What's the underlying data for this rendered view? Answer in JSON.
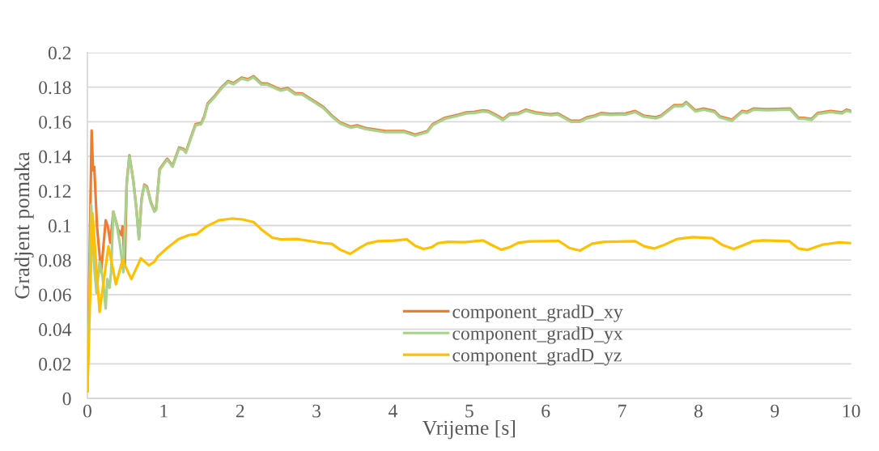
{
  "chart_data": {
    "type": "line",
    "xlabel": "Vrijeme [s]",
    "ylabel": "Gradjent pomaka",
    "xlim": [
      0,
      10
    ],
    "ylim": [
      0,
      0.2
    ],
    "xticks": [
      0,
      1,
      2,
      3,
      4,
      5,
      6,
      7,
      8,
      9,
      10
    ],
    "yticks": [
      0,
      0.02,
      0.04,
      0.06,
      0.08,
      0.1,
      0.12,
      0.14,
      0.16,
      0.18,
      0.2
    ],
    "grid": "y",
    "legend": "bottom",
    "series": [
      {
        "name": "component_gradD_xy",
        "color": "#ed7d31",
        "x": [
          0,
          0.056,
          0.074,
          0.09,
          0.127,
          0.18,
          0.24,
          0.27,
          0.3,
          0.34,
          0.4,
          0.445,
          0.46,
          0.49,
          0.515,
          0.55,
          0.6,
          0.64,
          0.675,
          0.71,
          0.745,
          0.78,
          0.83,
          0.876,
          0.9,
          0.946,
          1.01,
          1.045,
          1.116,
          1.2,
          1.257,
          1.29,
          1.36,
          1.416,
          1.49,
          1.53,
          1.575,
          1.68,
          1.75,
          1.84,
          1.91,
          2.02,
          2.1,
          2.175,
          2.28,
          2.35,
          2.53,
          2.62,
          2.72,
          2.81,
          2.99,
          3.09,
          3.2,
          3.31,
          3.45,
          3.53,
          3.64,
          3.9,
          4.15,
          4.29,
          4.45,
          4.52,
          4.68,
          4.86,
          4.96,
          5.07,
          5.18,
          5.25,
          5.34,
          5.44,
          5.53,
          5.64,
          5.74,
          5.87,
          6.06,
          6.16,
          6.33,
          6.45,
          6.54,
          6.64,
          6.73,
          6.84,
          7.05,
          7.17,
          7.28,
          7.44,
          7.51,
          7.68,
          7.79,
          7.84,
          7.96,
          8.07,
          8.21,
          8.28,
          8.44,
          8.57,
          8.64,
          8.72,
          8.9,
          9.2,
          9.31,
          9.38,
          9.48,
          9.56,
          9.73,
          9.88,
          9.94,
          10.0
        ],
        "values": [
          0.004,
          0.155,
          0.132,
          0.134,
          0.099,
          0.073,
          0.103,
          0.099,
          0.09,
          0.108,
          0.098,
          0.0945,
          0.0995,
          0.077,
          0.1246,
          0.1406,
          0.1266,
          0.1106,
          0.0926,
          0.1156,
          0.1236,
          0.1226,
          0.1136,
          0.1086,
          0.1096,
          0.1326,
          0.1366,
          0.1386,
          0.1346,
          0.1451,
          0.1444,
          0.1426,
          0.1516,
          0.1586,
          0.1592,
          0.1631,
          0.1706,
          0.1756,
          0.1796,
          0.1836,
          0.1823,
          0.1856,
          0.1846,
          0.1864,
          0.1821,
          0.1822,
          0.1786,
          0.1796,
          0.1764,
          0.1764,
          0.1714,
          0.1686,
          0.1636,
          0.1596,
          0.1572,
          0.1579,
          0.1564,
          0.1546,
          0.1546,
          0.1526,
          0.1546,
          0.1586,
          0.1623,
          0.1642,
          0.1654,
          0.1658,
          0.1666,
          0.1662,
          0.1642,
          0.1616,
          0.1646,
          0.165,
          0.167,
          0.1654,
          0.1644,
          0.1648,
          0.1606,
          0.1606,
          0.1626,
          0.1636,
          0.1651,
          0.1646,
          0.1648,
          0.1662,
          0.1636,
          0.1626,
          0.1636,
          0.1696,
          0.1696,
          0.1714,
          0.1666,
          0.1676,
          0.1662,
          0.1631,
          0.1612,
          0.1662,
          0.1658,
          0.1676,
          0.1673,
          0.1676,
          0.1623,
          0.1623,
          0.1616,
          0.1651,
          0.1662,
          0.1654,
          0.167,
          0.1662
        ]
      },
      {
        "name": "component_gradD_yx",
        "color": "#a9d18e",
        "x": [
          0,
          0.05,
          0.09,
          0.12,
          0.16,
          0.2,
          0.24,
          0.26,
          0.29,
          0.31,
          0.34,
          0.39,
          0.43,
          0.47,
          0.515,
          0.55,
          0.6,
          0.64,
          0.675,
          0.71,
          0.745,
          0.78,
          0.83,
          0.876,
          0.9,
          0.946,
          1.01,
          1.045,
          1.116,
          1.2,
          1.257,
          1.29,
          1.36,
          1.416,
          1.49,
          1.53,
          1.575,
          1.68,
          1.75,
          1.84,
          1.91,
          2.02,
          2.1,
          2.175,
          2.28,
          2.35,
          2.53,
          2.62,
          2.72,
          2.81,
          2.99,
          3.09,
          3.2,
          3.31,
          3.45,
          3.53,
          3.64,
          3.9,
          4.15,
          4.29,
          4.45,
          4.52,
          4.68,
          4.86,
          4.96,
          5.07,
          5.18,
          5.25,
          5.34,
          5.44,
          5.53,
          5.64,
          5.74,
          5.87,
          6.06,
          6.16,
          6.33,
          6.45,
          6.54,
          6.64,
          6.73,
          6.84,
          7.05,
          7.17,
          7.28,
          7.44,
          7.51,
          7.68,
          7.79,
          7.84,
          7.96,
          8.07,
          8.21,
          8.28,
          8.44,
          8.57,
          8.64,
          8.72,
          8.9,
          9.2,
          9.31,
          9.38,
          9.48,
          9.56,
          9.73,
          9.88,
          9.94,
          10.0
        ],
        "values": [
          0.004,
          0.112,
          0.076,
          0.061,
          0.079,
          0.07,
          0.052,
          0.069,
          0.064,
          0.073,
          0.108,
          0.099,
          0.088,
          0.073,
          0.124,
          0.14,
          0.126,
          0.11,
          0.092,
          0.115,
          0.123,
          0.122,
          0.113,
          0.108,
          0.109,
          0.132,
          0.136,
          0.138,
          0.134,
          0.1445,
          0.1438,
          0.142,
          0.151,
          0.158,
          0.1586,
          0.1625,
          0.17,
          0.175,
          0.179,
          0.183,
          0.1817,
          0.185,
          0.184,
          0.1858,
          0.1815,
          0.1816,
          0.178,
          0.179,
          0.1758,
          0.1758,
          0.1708,
          0.168,
          0.163,
          0.159,
          0.1566,
          0.1573,
          0.1558,
          0.154,
          0.154,
          0.152,
          0.154,
          0.158,
          0.1617,
          0.1636,
          0.1648,
          0.1652,
          0.166,
          0.1656,
          0.1636,
          0.161,
          0.164,
          0.1644,
          0.1664,
          0.1648,
          0.1638,
          0.1642,
          0.16,
          0.16,
          0.162,
          0.163,
          0.1645,
          0.164,
          0.1642,
          0.1656,
          0.163,
          0.162,
          0.163,
          0.169,
          0.169,
          0.1708,
          0.166,
          0.167,
          0.1656,
          0.1625,
          0.1606,
          0.1656,
          0.1652,
          0.167,
          0.1667,
          0.167,
          0.1617,
          0.1617,
          0.161,
          0.1645,
          0.1656,
          0.1648,
          0.1664,
          0.1656
        ]
      },
      {
        "name": "component_gradD_yz",
        "color": "#ffc000",
        "x": [
          0,
          0.067,
          0.16,
          0.275,
          0.374,
          0.46,
          0.576,
          0.7,
          0.805,
          0.876,
          0.92,
          1.045,
          1.19,
          1.33,
          1.43,
          1.56,
          1.72,
          1.89,
          2.03,
          2.175,
          2.28,
          2.42,
          2.53,
          2.74,
          2.92,
          3.09,
          3.2,
          3.31,
          3.44,
          3.55,
          3.66,
          3.8,
          4.01,
          4.18,
          4.29,
          4.4,
          4.51,
          4.59,
          4.72,
          4.93,
          5.18,
          5.28,
          5.42,
          5.53,
          5.64,
          5.78,
          6.17,
          6.31,
          6.45,
          6.61,
          6.77,
          7.17,
          7.29,
          7.42,
          7.54,
          7.72,
          7.93,
          8.18,
          8.32,
          8.46,
          8.57,
          8.71,
          8.85,
          9.19,
          9.31,
          9.43,
          9.63,
          9.84,
          10.0
        ],
        "values": [
          0.004,
          0.107,
          0.05,
          0.088,
          0.066,
          0.08,
          0.069,
          0.081,
          0.077,
          0.079,
          0.082,
          0.087,
          0.092,
          0.0945,
          0.095,
          0.0995,
          0.103,
          0.104,
          0.1035,
          0.102,
          0.0977,
          0.093,
          0.092,
          0.0922,
          0.091,
          0.0898,
          0.0894,
          0.086,
          0.0836,
          0.0867,
          0.0895,
          0.0909,
          0.0913,
          0.092,
          0.0883,
          0.0864,
          0.0875,
          0.0898,
          0.0906,
          0.0903,
          0.0914,
          0.089,
          0.086,
          0.0875,
          0.09,
          0.0908,
          0.0911,
          0.087,
          0.0855,
          0.0895,
          0.0906,
          0.0909,
          0.088,
          0.0867,
          0.0886,
          0.0922,
          0.0933,
          0.0927,
          0.0886,
          0.0864,
          0.0883,
          0.0909,
          0.0914,
          0.0909,
          0.0867,
          0.0859,
          0.089,
          0.0902,
          0.0898
        ]
      }
    ]
  }
}
